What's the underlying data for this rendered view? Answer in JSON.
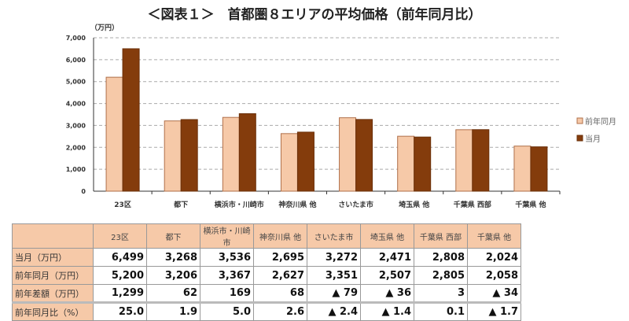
{
  "title": "＜図表１＞　首都圏８エリアの平均価格（前年同月比）",
  "chart_data": {
    "type": "bar",
    "ylabel": "（万円）",
    "ylim": [
      0,
      7000
    ],
    "yticks": [
      0,
      1000,
      2000,
      3000,
      4000,
      5000,
      6000,
      7000
    ],
    "ytick_labels": [
      "0",
      "1,000",
      "2,000",
      "3,000",
      "4,000",
      "5,000",
      "6,000",
      "7,000"
    ],
    "grid": true,
    "legend_position": "right",
    "categories": [
      "23区",
      "都下",
      "横浜市・川崎市",
      "神奈川県 他",
      "さいたま市",
      "埼玉県 他",
      "千葉県 西部",
      "千葉県 他"
    ],
    "series": [
      {
        "name": "前年同月",
        "color": "#f6c9a8",
        "stroke": "#b0704a",
        "values": [
          5200,
          3206,
          3367,
          2627,
          3351,
          2507,
          2805,
          2058
        ]
      },
      {
        "name": "当月",
        "color": "#843c0c",
        "stroke": "#6b300a",
        "values": [
          6499,
          3268,
          3536,
          2695,
          3272,
          2471,
          2808,
          2024
        ]
      }
    ]
  },
  "table": {
    "headers": [
      "23区",
      "都下",
      "横浜市・川崎市",
      "神奈川県 他",
      "さいたま市",
      "埼玉県 他",
      "千葉県 西部",
      "千葉県 他"
    ],
    "rows": [
      {
        "label": "当月（万円）",
        "cells": [
          "6,499",
          "3,268",
          "3,536",
          "2,695",
          "3,272",
          "2,471",
          "2,808",
          "2,024"
        ]
      },
      {
        "label": "前年同月（万円）",
        "cells": [
          "5,200",
          "3,206",
          "3,367",
          "2,627",
          "3,351",
          "2,507",
          "2,805",
          "2,058"
        ]
      },
      {
        "label": "前年差額（万円）",
        "cells": [
          "1,299",
          "62",
          "169",
          "68",
          "▲ 79",
          "▲ 36",
          "3",
          "▲ 34"
        ]
      },
      {
        "label": "前年同月比（%）",
        "cells": [
          "25.0",
          "1.9",
          "5.0",
          "2.6",
          "▲ 2.4",
          "▲ 1.4",
          "0.1",
          "▲ 1.7"
        ]
      }
    ]
  }
}
